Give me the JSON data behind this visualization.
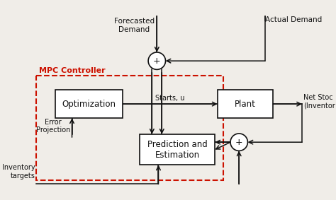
{
  "bg_color": "#f0ede8",
  "box_color": "#ffffff",
  "box_edge": "#111111",
  "arrow_color": "#111111",
  "dashed_rect_color": "#cc1100",
  "mpc_label_color": "#cc1100",
  "mpc_label": "MPC Controller",
  "opt_label": "Optimization",
  "plant_label": "Plant",
  "pred_label": "Prediction and\nEstimation",
  "fore_demand_label": "Forecasted\nDemand",
  "actual_demand_label": "Actual Demand",
  "net_stock_label": "Net Stoc\n(Inventor",
  "starts_u_label": "Starts, u",
  "error_proj_label": "Error\nProjection",
  "inventory_label": "Inventory\ntargets",
  "figsize": [
    4.74,
    2.83
  ],
  "dpi": 100
}
